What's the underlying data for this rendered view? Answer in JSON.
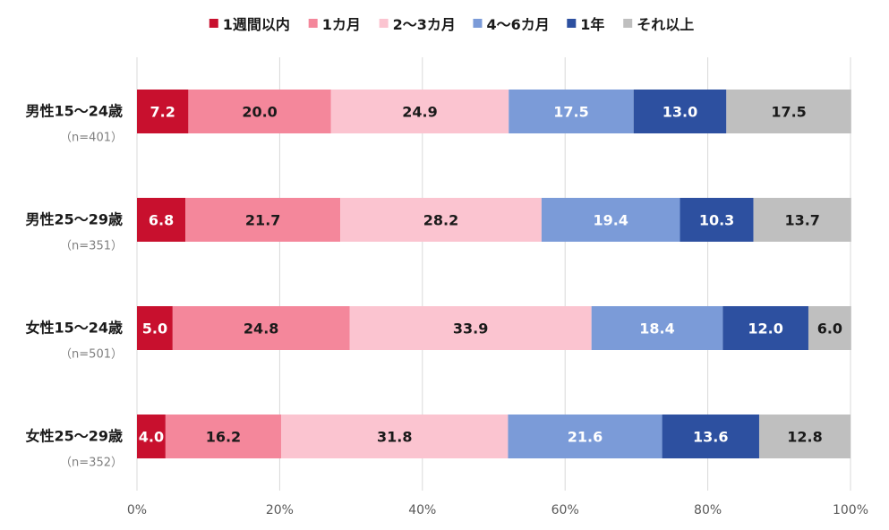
{
  "chart_data": {
    "type": "bar",
    "orientation": "horizontal",
    "stacked": true,
    "percent": true,
    "title": "",
    "xlabel": "",
    "ylabel": "",
    "xlim": [
      0,
      100
    ],
    "grid": true,
    "legend_position": "top",
    "x_ticks": [
      "0%",
      "20%",
      "40%",
      "60%",
      "80%",
      "100%"
    ],
    "x_tick_values": [
      0,
      20,
      40,
      60,
      80,
      100
    ],
    "categories": [
      {
        "label": "男性15～24歳",
        "n": "（n=401）"
      },
      {
        "label": "男性25～29歳",
        "n": "（n=351）"
      },
      {
        "label": "女性15～24歳",
        "n": "（n=501）"
      },
      {
        "label": "女性25～29歳",
        "n": "（n=352）"
      }
    ],
    "series": [
      {
        "name": "1週間以内",
        "color": "#c8102e",
        "text_color": "#ffffff",
        "values": [
          7.2,
          6.8,
          5.0,
          4.0
        ]
      },
      {
        "name": "1カ月",
        "color": "#f4879b",
        "text_color": "#1a1a1a",
        "values": [
          20.0,
          21.7,
          24.8,
          16.2
        ]
      },
      {
        "name": "2～3カ月",
        "color": "#fbc4d0",
        "text_color": "#1a1a1a",
        "values": [
          24.9,
          28.2,
          33.9,
          31.8
        ]
      },
      {
        "name": "4～6カ月",
        "color": "#7b9bd8",
        "text_color": "#ffffff",
        "values": [
          17.5,
          19.4,
          18.4,
          21.6
        ]
      },
      {
        "name": "1年",
        "color": "#2d50a0",
        "text_color": "#ffffff",
        "values": [
          13.0,
          10.3,
          12.0,
          13.6
        ]
      },
      {
        "name": "それ以上",
        "color": "#bfbfbf",
        "text_color": "#1a1a1a",
        "values": [
          17.5,
          13.7,
          6.0,
          12.8
        ]
      }
    ]
  }
}
